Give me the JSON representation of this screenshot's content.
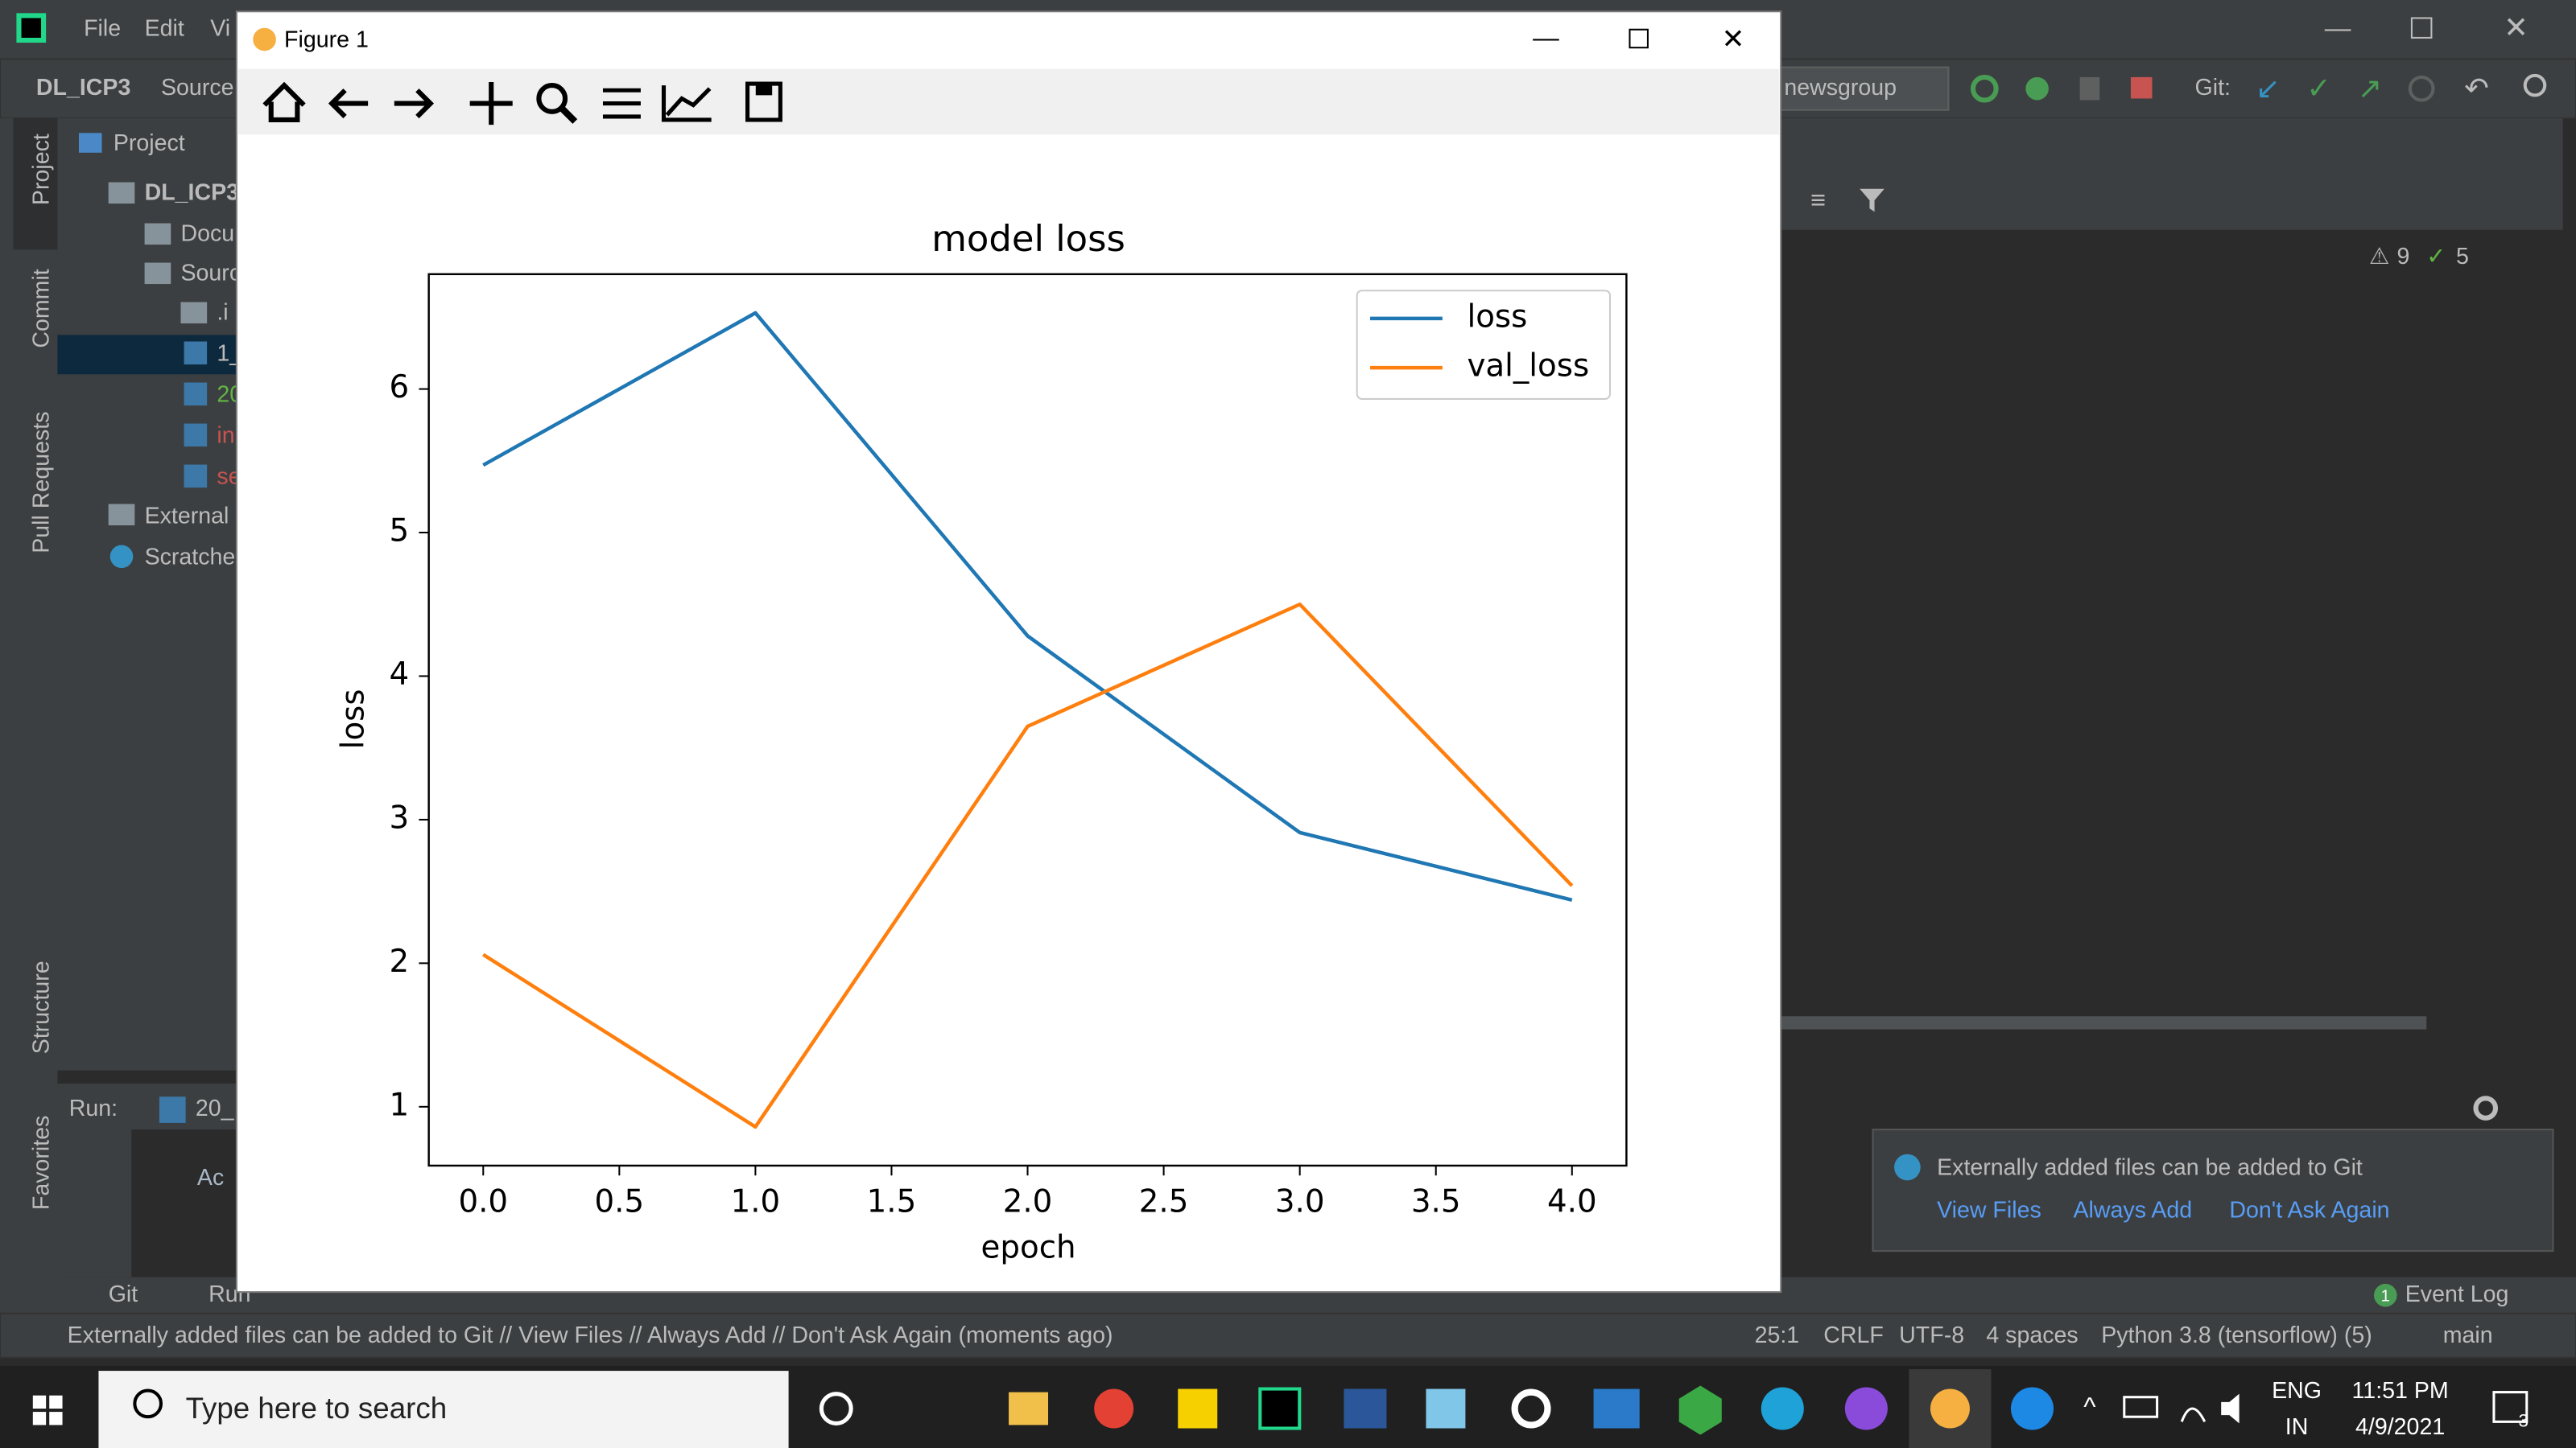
{
  "ide": {
    "menu": [
      "File",
      "Edit",
      "Vi"
    ],
    "project": "DL_ICP3",
    "breadcrumb": "Source",
    "branch_selector": "newsgroup",
    "git_label": "Git:",
    "project_panel": "Project",
    "tree": [
      "DL_ICP3",
      "Docu",
      "Sourc",
      ".i",
      "1_",
      "20",
      "in",
      "se",
      "External",
      "Scratche"
    ],
    "side_tabs": [
      "Project",
      "Commit",
      "Pull Requests",
      "Structure",
      "Favorites"
    ],
    "warnings": "9",
    "checks": "5",
    "run_label": "Run:",
    "run_tab": "20_",
    "run_output": "Ac",
    "notification": {
      "text": "Externally added files can be added to Git",
      "actions": [
        "View Files",
        "Always Add",
        "Don't Ask Again"
      ]
    },
    "bottom_tabs": [
      "Git",
      "Run"
    ],
    "event_count": "1",
    "event_log": "Event Log",
    "status_message": "Externally added files can be added to Git // View Files // Always Add // Don't Ask Again (moments ago)",
    "status_items": [
      "25:1",
      "CRLF",
      "UTF-8",
      "4 spaces",
      "Python 3.8 (tensorflow) (5)",
      "main"
    ]
  },
  "figure_window": {
    "title": "Figure 1"
  },
  "chart_data": {
    "type": "line",
    "title": "model loss",
    "x_label": "epoch",
    "y_label": "loss",
    "x": [
      0,
      1,
      2,
      3,
      4
    ],
    "series": [
      {
        "name": "loss",
        "color": "#1f77b4",
        "values": [
          5.47,
          6.53,
          4.28,
          2.91,
          2.44
        ]
      },
      {
        "name": "val_loss",
        "color": "#ff7f0e",
        "values": [
          2.06,
          0.86,
          3.65,
          4.5,
          2.54
        ]
      }
    ],
    "xlim": [
      -0.2,
      4.2
    ],
    "xticks": [
      {
        "value": 0,
        "label": "0.0"
      },
      {
        "value": 0.5,
        "label": "0.5"
      },
      {
        "value": 1,
        "label": "1.0"
      },
      {
        "value": 1.5,
        "label": "1.5"
      },
      {
        "value": 2,
        "label": "2.0"
      },
      {
        "value": 2.5,
        "label": "2.5"
      },
      {
        "value": 3,
        "label": "3.0"
      },
      {
        "value": 3.5,
        "label": "3.5"
      },
      {
        "value": 4,
        "label": "4.0"
      }
    ],
    "ylim": [
      0.59,
      6.8
    ],
    "yticks": [
      1,
      2,
      3,
      4,
      5,
      6
    ],
    "legend": "upper right",
    "grid": false
  },
  "taskbar": {
    "search": "Type here to search",
    "language": [
      "ENG",
      "IN"
    ],
    "time": "11:51 PM",
    "date": "4/9/2021",
    "notifications": "3"
  }
}
